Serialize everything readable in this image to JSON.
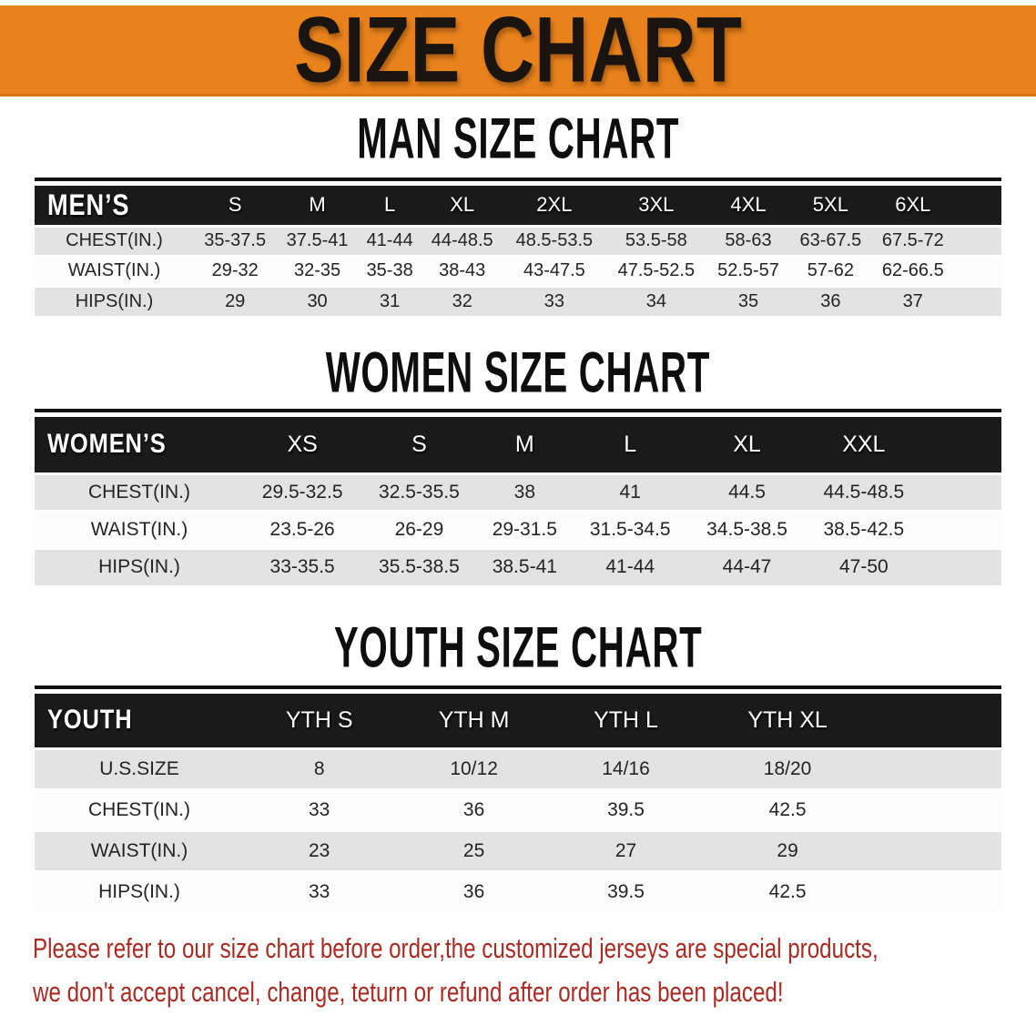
{
  "banner": {
    "title": "SIZE CHART"
  },
  "sections": [
    {
      "id": "men",
      "title": "MAN SIZE CHART",
      "label": "MEN’S",
      "sizes": [
        "S",
        "M",
        "L",
        "XL",
        "2XL",
        "3XL",
        "4XL",
        "5XL",
        "6XL"
      ],
      "rows": [
        {
          "label": "CHEST(IN.)",
          "values": [
            "35-37.5",
            "37.5-41",
            "41-44",
            "44-48.5",
            "48.5-53.5",
            "53.5-58",
            "58-63",
            "63-67.5",
            "67.5-72"
          ]
        },
        {
          "label": "WAIST(IN.)",
          "values": [
            "29-32",
            "32-35",
            "35-38",
            "38-43",
            "43-47.5",
            "47.5-52.5",
            "52.5-57",
            "57-62",
            "62-66.5"
          ]
        },
        {
          "label": "HIPS(IN.)",
          "values": [
            "29",
            "30",
            "31",
            "32",
            "33",
            "34",
            "35",
            "36",
            "37"
          ]
        }
      ]
    },
    {
      "id": "women",
      "title": "WOMEN SIZE CHART",
      "label": "WOMEN’S",
      "sizes": [
        "XS",
        "S",
        "M",
        "L",
        "XL",
        "XXL"
      ],
      "rows": [
        {
          "label": "CHEST(IN.)",
          "values": [
            "29.5-32.5",
            "32.5-35.5",
            "38",
            "41",
            "44.5",
            "44.5-48.5"
          ]
        },
        {
          "label": "WAIST(IN.)",
          "values": [
            "23.5-26",
            "26-29",
            "29-31.5",
            "31.5-34.5",
            "34.5-38.5",
            "38.5-42.5"
          ]
        },
        {
          "label": "HIPS(IN.)",
          "values": [
            "33-35.5",
            "35.5-38.5",
            "38.5-41",
            "41-44",
            "44-47",
            "47-50"
          ]
        }
      ]
    },
    {
      "id": "youth",
      "title": "YOUTH SIZE CHART",
      "label": "YOUTH",
      "sizes": [
        "YTH S",
        "YTH M",
        "YTH L",
        "YTH XL"
      ],
      "rows": [
        {
          "label": "U.S.SIZE",
          "values": [
            "8",
            "10/12",
            "14/16",
            "18/20"
          ]
        },
        {
          "label": "CHEST(IN.)",
          "values": [
            "33",
            "36",
            "39.5",
            "42.5"
          ]
        },
        {
          "label": "WAIST(IN.)",
          "values": [
            "23",
            "25",
            "27",
            "29"
          ]
        },
        {
          "label": "HIPS(IN.)",
          "values": [
            "33",
            "36",
            "39.5",
            "42.5"
          ]
        }
      ]
    }
  ],
  "disclaimer": {
    "line1": "Please refer to our size chart before order,the customized jerseys are special products,",
    "line2": "we don't accept cancel, change, teturn or refund after order has been placed!"
  },
  "colors": {
    "banner_orange": "#e8821c",
    "band_black": "#1a1a1a",
    "stripe_gray": "#e3e3e3",
    "disclaimer_red": "#ab2a21"
  }
}
